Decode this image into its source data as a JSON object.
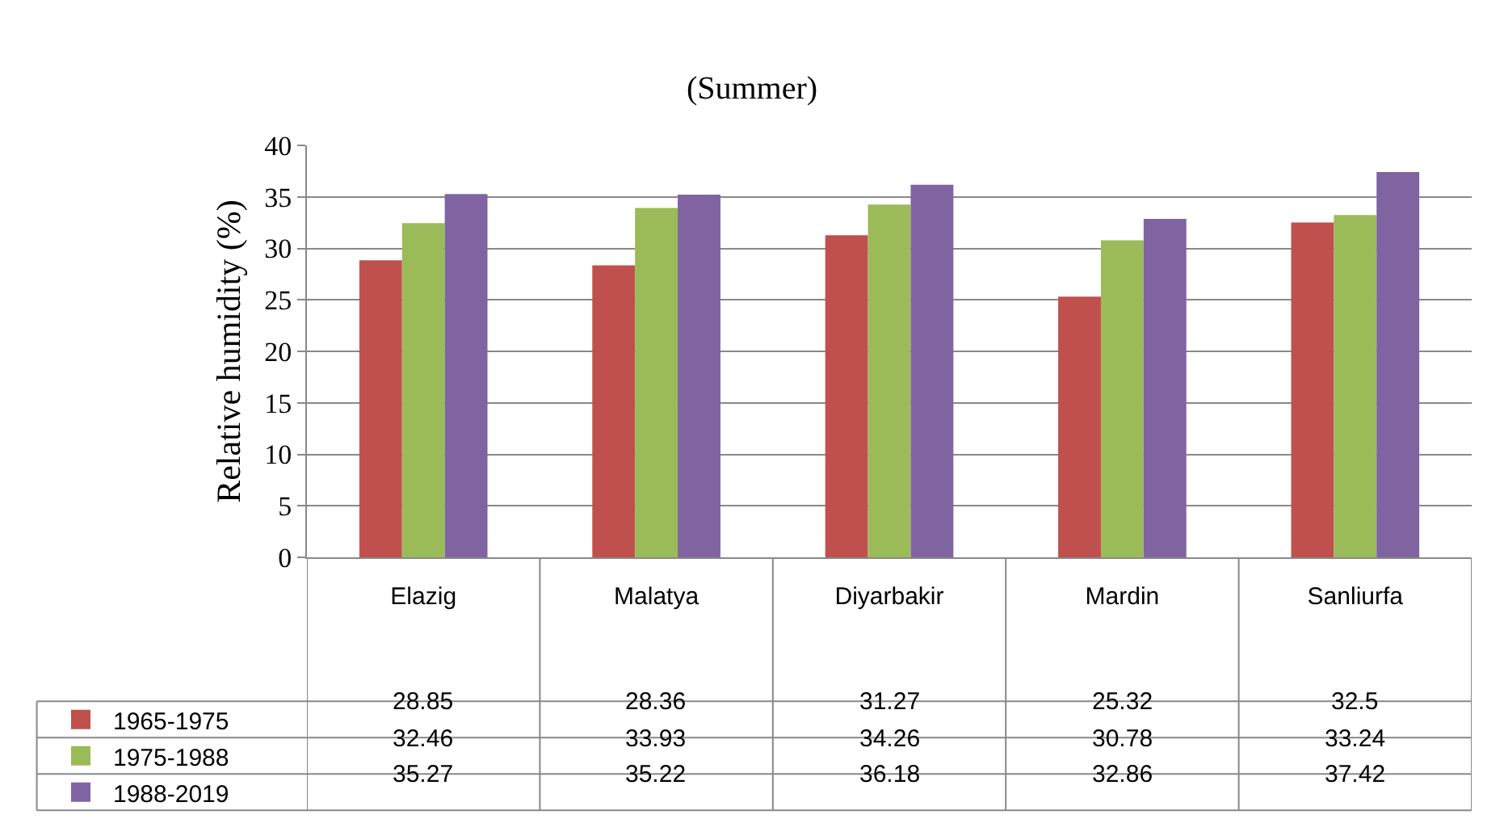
{
  "chart_data": {
    "type": "bar",
    "title": "(Summer)",
    "ylabel": "Relative humidity (%)",
    "categories": [
      "Elazig",
      "Malatya",
      "Diyarbakir",
      "Mardin",
      "Sanliurfa"
    ],
    "series": [
      {
        "name": "1965-1975",
        "color": "#c0504d",
        "values": [
          28.85,
          28.36,
          31.27,
          25.32,
          32.5
        ]
      },
      {
        "name": "1975-1988",
        "color": "#9bbb59",
        "values": [
          32.46,
          33.93,
          34.26,
          30.78,
          33.24
        ]
      },
      {
        "name": "1988-2019",
        "color": "#8064a2",
        "values": [
          35.27,
          35.22,
          36.18,
          32.86,
          37.42
        ]
      }
    ],
    "ylim": [
      0,
      40
    ],
    "yticks": [
      0,
      5,
      10,
      15,
      20,
      25,
      30,
      35,
      40
    ],
    "grid": "y",
    "legend": "bottom left",
    "data_labels": true
  }
}
